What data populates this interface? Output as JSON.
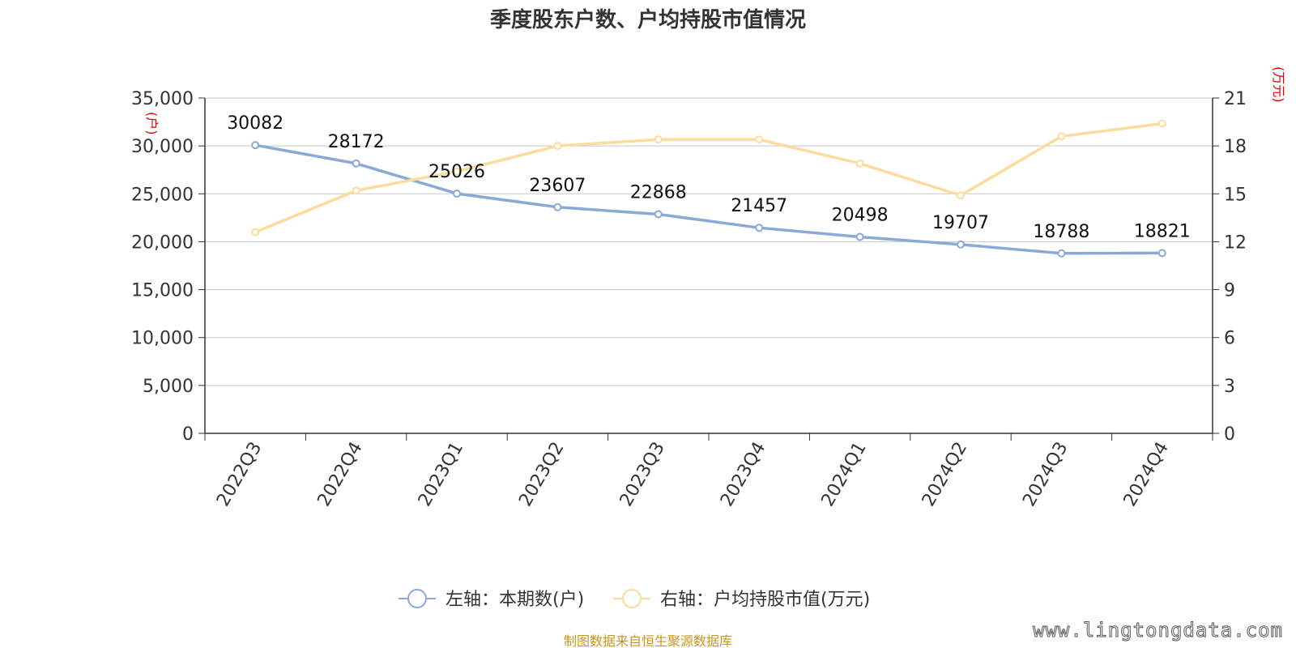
{
  "chart_data": {
    "type": "line",
    "title": "季度股东户数、户均持股市值情况",
    "categories": [
      "2022Q3",
      "2022Q4",
      "2023Q1",
      "2023Q2",
      "2023Q3",
      "2023Q4",
      "2024Q1",
      "2024Q2",
      "2024Q3",
      "2024Q4"
    ],
    "left_axis": {
      "unit": "(户)",
      "range": [
        0,
        35000
      ],
      "ticks": [
        0,
        5000,
        10000,
        15000,
        20000,
        25000,
        30000,
        35000
      ],
      "tick_labels": [
        "0",
        "5,000",
        "10,000",
        "15,000",
        "20,000",
        "25,000",
        "30,000",
        "35,000"
      ]
    },
    "right_axis": {
      "unit": "(万元)",
      "range": [
        0,
        21
      ],
      "ticks": [
        0,
        3,
        6,
        9,
        12,
        15,
        18,
        21
      ],
      "tick_labels": [
        "0",
        "3",
        "6",
        "9",
        "12",
        "15",
        "18",
        "21"
      ]
    },
    "series": [
      {
        "name": "左轴：本期数(户)",
        "axis": "left",
        "color": "#8ba9d6",
        "values": [
          30082,
          28172,
          25026,
          23607,
          22868,
          21457,
          20498,
          19707,
          18788,
          18821
        ],
        "labels": [
          "30082",
          "28172",
          "25026",
          "23607",
          "22868",
          "21457",
          "20498",
          "19707",
          "18788",
          "18821"
        ]
      },
      {
        "name": "右轴：户均持股市值(万元)",
        "axis": "right",
        "color": "#fbdc9c",
        "values": [
          12.6,
          15.2,
          16.4,
          18.0,
          18.4,
          18.4,
          16.9,
          14.9,
          18.6,
          19.4
        ]
      }
    ],
    "grid": true,
    "legend_position": "bottom-center"
  },
  "footer": {
    "source": "制图数据来自恒生聚源数据库",
    "watermark": "www.lingtongdata.com"
  }
}
